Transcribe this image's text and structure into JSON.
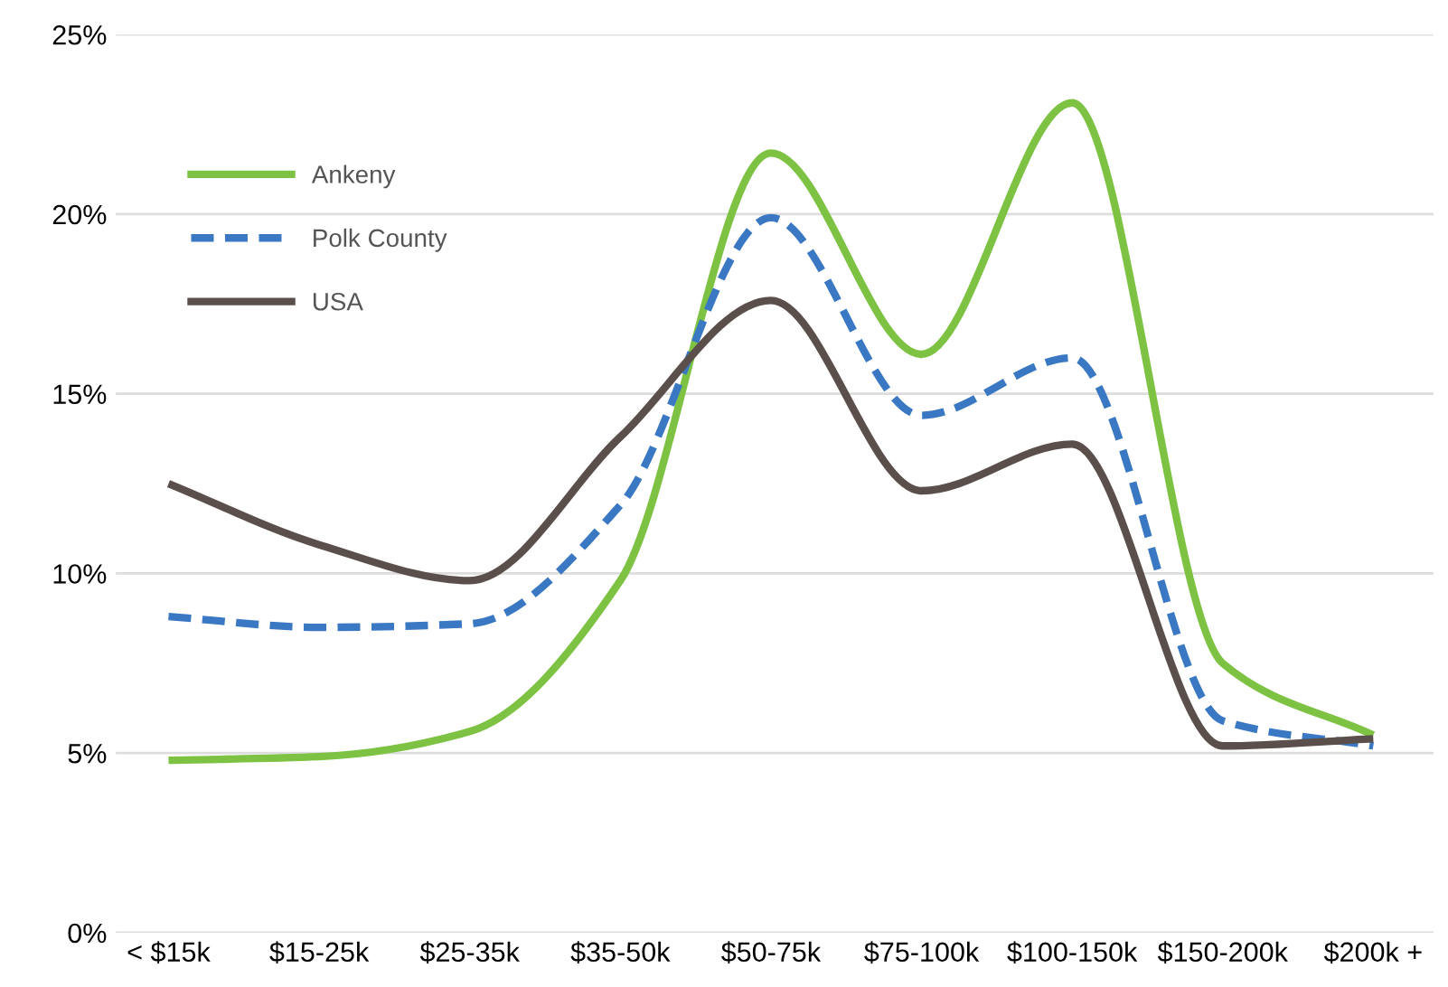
{
  "chart_data": {
    "type": "line",
    "categories": [
      "< $15k",
      "$15-25k",
      "$25-35k",
      "$35-50k",
      "$50-75k",
      "$75-100k",
      "$100-150k",
      "$150-200k",
      "$200k +"
    ],
    "series": [
      {
        "name": "Ankeny",
        "color": "#7dc242",
        "line_style": "solid",
        "values": [
          4.8,
          4.9,
          5.6,
          9.8,
          21.7,
          16.1,
          23.1,
          7.5,
          5.5
        ]
      },
      {
        "name": "Polk County",
        "color": "#3a78c3",
        "line_style": "dashed",
        "values": [
          8.8,
          8.5,
          8.6,
          11.9,
          19.9,
          14.4,
          16.0,
          5.9,
          5.2
        ]
      },
      {
        "name": "USA",
        "color": "#5b4f4c",
        "line_style": "solid",
        "values": [
          12.5,
          10.8,
          9.8,
          13.8,
          17.6,
          12.3,
          13.6,
          5.2,
          5.4
        ]
      }
    ],
    "ylim": [
      0,
      25
    ],
    "yticks": [
      {
        "value": 0,
        "label": "0%"
      },
      {
        "value": 5,
        "label": "5%"
      },
      {
        "value": 10,
        "label": "10%"
      },
      {
        "value": 15,
        "label": "15%"
      },
      {
        "value": 20,
        "label": "20%"
      },
      {
        "value": 25,
        "label": "25%"
      }
    ],
    "grid": "y",
    "legend": "top left",
    "marker": "none"
  }
}
